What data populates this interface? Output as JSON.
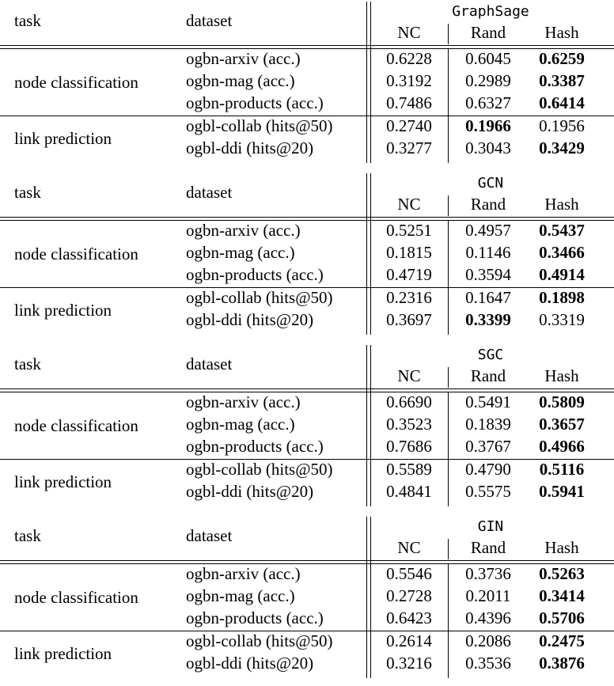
{
  "headers": {
    "task": "task",
    "dataset": "dataset",
    "nc": "NC",
    "rand": "Rand",
    "hash": "Hash"
  },
  "tasks": {
    "node": "node classification",
    "link": "link prediction"
  },
  "tables": [
    {
      "model": "GraphSage",
      "rows": [
        {
          "dataset": "ogbn-arxiv (acc.)",
          "nc": "0.6228",
          "rand": "0.6045",
          "hash": "0.6259",
          "bold": "hash"
        },
        {
          "dataset": "ogbn-mag (acc.)",
          "nc": "0.3192",
          "rand": "0.2989",
          "hash": "0.3387",
          "bold": "hash"
        },
        {
          "dataset": "ogbn-products (acc.)",
          "nc": "0.7486",
          "rand": "0.6327",
          "hash": "0.6414",
          "bold": "hash"
        },
        {
          "dataset": "ogbl-collab (hits@50)",
          "nc": "0.2740",
          "rand": "0.1966",
          "hash": "0.1956",
          "bold": "rand"
        },
        {
          "dataset": "ogbl-ddi (hits@20)",
          "nc": "0.3277",
          "rand": "0.3043",
          "hash": "0.3429",
          "bold": "hash"
        }
      ]
    },
    {
      "model": "GCN",
      "rows": [
        {
          "dataset": "ogbn-arxiv (acc.)",
          "nc": "0.5251",
          "rand": "0.4957",
          "hash": "0.5437",
          "bold": "hash"
        },
        {
          "dataset": "ogbn-mag (acc.)",
          "nc": "0.1815",
          "rand": "0.1146",
          "hash": "0.3466",
          "bold": "hash"
        },
        {
          "dataset": "ogbn-products (acc.)",
          "nc": "0.4719",
          "rand": "0.3594",
          "hash": "0.4914",
          "bold": "hash"
        },
        {
          "dataset": "ogbl-collab (hits@50)",
          "nc": "0.2316",
          "rand": "0.1647",
          "hash": "0.1898",
          "bold": "hash"
        },
        {
          "dataset": "ogbl-ddi (hits@20)",
          "nc": "0.3697",
          "rand": "0.3399",
          "hash": "0.3319",
          "bold": "rand"
        }
      ]
    },
    {
      "model": "SGC",
      "rows": [
        {
          "dataset": "ogbn-arxiv (acc.)",
          "nc": "0.6690",
          "rand": "0.5491",
          "hash": "0.5809",
          "bold": "hash"
        },
        {
          "dataset": "ogbn-mag (acc.)",
          "nc": "0.3523",
          "rand": "0.1839",
          "hash": "0.3657",
          "bold": "hash"
        },
        {
          "dataset": "ogbn-products (acc.)",
          "nc": "0.7686",
          "rand": "0.3767",
          "hash": "0.4966",
          "bold": "hash"
        },
        {
          "dataset": "ogbl-collab (hits@50)",
          "nc": "0.5589",
          "rand": "0.4790",
          "hash": "0.5116",
          "bold": "hash"
        },
        {
          "dataset": "ogbl-ddi (hits@20)",
          "nc": "0.4841",
          "rand": "0.5575",
          "hash": "0.5941",
          "bold": "hash"
        }
      ]
    },
    {
      "model": "GIN",
      "rows": [
        {
          "dataset": "ogbn-arxiv (acc.)",
          "nc": "0.5546",
          "rand": "0.3736",
          "hash": "0.5263",
          "bold": "hash"
        },
        {
          "dataset": "ogbn-mag (acc.)",
          "nc": "0.2728",
          "rand": "0.2011",
          "hash": "0.3414",
          "bold": "hash"
        },
        {
          "dataset": "ogbn-products (acc.)",
          "nc": "0.6423",
          "rand": "0.4396",
          "hash": "0.5706",
          "bold": "hash"
        },
        {
          "dataset": "ogbl-collab (hits@50)",
          "nc": "0.2614",
          "rand": "0.2086",
          "hash": "0.2475",
          "bold": "hash"
        },
        {
          "dataset": "ogbl-ddi (hits@20)",
          "nc": "0.3216",
          "rand": "0.3536",
          "hash": "0.3876",
          "bold": "hash"
        }
      ]
    }
  ]
}
